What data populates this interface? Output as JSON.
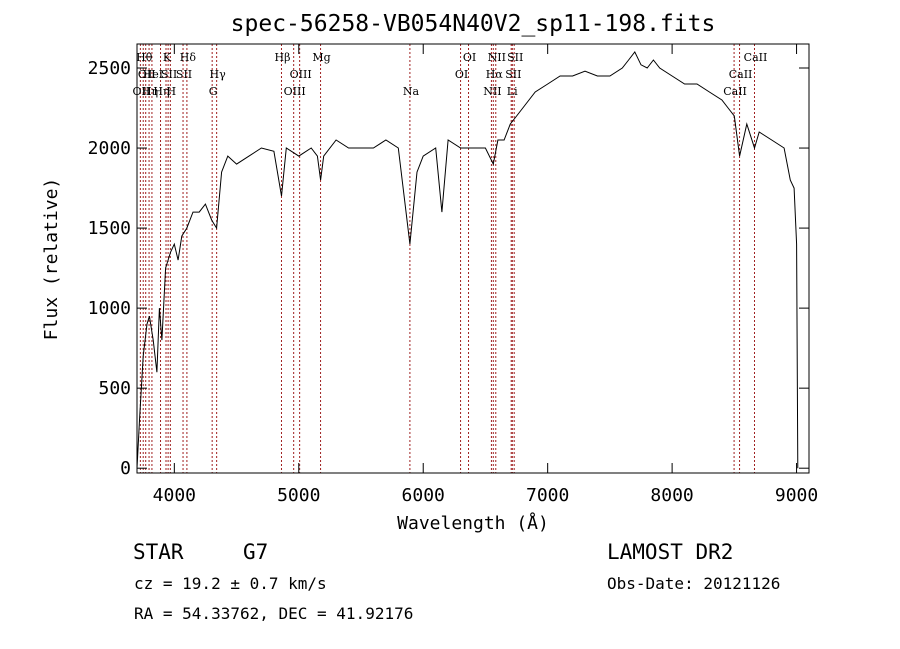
{
  "chart_data": {
    "type": "line",
    "title": "spec-56258-VB054N40V2_sp11-198.fits",
    "xlabel": "Wavelength (Å)",
    "ylabel": "Flux (relative)",
    "xlim": [
      3700,
      9100
    ],
    "ylim": [
      -30,
      2650
    ],
    "x_ticks": [
      4000,
      5000,
      6000,
      7000,
      8000,
      9000
    ],
    "y_ticks": [
      0,
      500,
      1000,
      1500,
      2000,
      2500
    ],
    "grid": false,
    "series": [
      {
        "x": [
          3700,
          3720,
          3750,
          3780,
          3800,
          3830,
          3860,
          3880,
          3900,
          3930,
          3950,
          3970,
          4000,
          4030,
          4060,
          4100,
          4150,
          4200,
          4250,
          4300,
          4340,
          4380,
          4430,
          4500,
          4600,
          4700,
          4800,
          4861,
          4900,
          5000,
          5100,
          5150,
          5175,
          5200,
          5300,
          5400,
          5500,
          5600,
          5700,
          5800,
          5893,
          5950,
          6000,
          6100,
          6150,
          6200,
          6300,
          6400,
          6500,
          6563,
          6600,
          6650,
          6700,
          6750,
          6800,
          6900,
          7000,
          7100,
          7200,
          7300,
          7400,
          7500,
          7600,
          7650,
          7700,
          7750,
          7800,
          7850,
          7900,
          8000,
          8100,
          8200,
          8300,
          8400,
          8450,
          8500,
          8542,
          8600,
          8662,
          8700,
          8800,
          8900,
          8950,
          8980,
          9000,
          9010
        ],
        "y": [
          0,
          300,
          700,
          900,
          950,
          800,
          600,
          1000,
          800,
          1250,
          1300,
          1350,
          1400,
          1300,
          1450,
          1500,
          1600,
          1600,
          1650,
          1550,
          1500,
          1850,
          1950,
          1900,
          1950,
          2000,
          1980,
          1700,
          2000,
          1950,
          2000,
          1950,
          1800,
          1950,
          2050,
          2000,
          2000,
          2000,
          2050,
          2000,
          1400,
          1850,
          1950,
          2000,
          1600,
          2050,
          2000,
          2000,
          2000,
          1900,
          2050,
          2050,
          2150,
          2200,
          2250,
          2350,
          2400,
          2450,
          2450,
          2480,
          2450,
          2450,
          2500,
          2550,
          2600,
          2520,
          2500,
          2550,
          2500,
          2450,
          2400,
          2400,
          2350,
          2300,
          2250,
          2200,
          1950,
          2150,
          2000,
          2100,
          2050,
          2000,
          1800,
          1750,
          1400,
          0
        ]
      }
    ],
    "lines": [
      {
        "x": 3727,
        "row": 2,
        "label": "OII"
      },
      {
        "x": 3750,
        "row": 0,
        "label": "Hθ"
      },
      {
        "x": 3770,
        "row": 1,
        "label": "OII"
      },
      {
        "x": 3797,
        "row": 2,
        "label": "Hη"
      },
      {
        "x": 3820,
        "row": 1,
        "label": "HeI"
      },
      {
        "x": 3889,
        "row": 2,
        "label": "Hη"
      },
      {
        "x": 3933,
        "row": 0,
        "label": "K"
      },
      {
        "x": 3950,
        "row": 1,
        "label": "SII"
      },
      {
        "x": 3968,
        "row": 2,
        "label": "H"
      },
      {
        "x": 4101,
        "row": 0,
        "label": "Hδ"
      },
      {
        "x": 4070,
        "row": 1,
        "label": "SII"
      },
      {
        "x": 4304,
        "row": 2,
        "label": "G"
      },
      {
        "x": 4340,
        "row": 1,
        "label": "Hγ"
      },
      {
        "x": 4861,
        "row": 0,
        "label": "Hβ"
      },
      {
        "x": 4959,
        "row": 2,
        "label": "OIII"
      },
      {
        "x": 5007,
        "row": 1,
        "label": "OIII"
      },
      {
        "x": 5175,
        "row": 0,
        "label": "Mg"
      },
      {
        "x": 5893,
        "row": 2,
        "label": "Na"
      },
      {
        "x": 6300,
        "row": 1,
        "label": "OI"
      },
      {
        "x": 6364,
        "row": 0,
        "label": "OI"
      },
      {
        "x": 6548,
        "row": 2,
        "label": "NII"
      },
      {
        "x": 6563,
        "row": 1,
        "label": "Hα"
      },
      {
        "x": 6583,
        "row": 0,
        "label": "NII"
      },
      {
        "x": 6707,
        "row": 2,
        "label": "Li"
      },
      {
        "x": 6716,
        "row": 1,
        "label": "SII"
      },
      {
        "x": 6731,
        "row": 0,
        "label": "SII"
      },
      {
        "x": 8498,
        "row": 2,
        "label": "CaII"
      },
      {
        "x": 8542,
        "row": 1,
        "label": "CaII"
      },
      {
        "x": 8662,
        "row": 0,
        "label": "CaII"
      }
    ]
  },
  "info": {
    "object_class": "STAR",
    "subclass": "G7",
    "survey": "LAMOST DR2",
    "redshift": "cz = 19.2 ± 0.7 km/s",
    "obs_date": "Obs-Date: 20121126",
    "coords": "RA =  54.33762, DEC =  41.92176"
  },
  "colors": {
    "spectrum": "#000000",
    "line_marker": "#a02020"
  }
}
